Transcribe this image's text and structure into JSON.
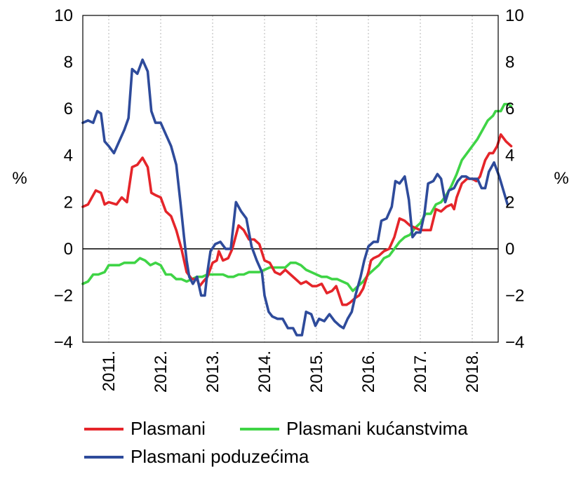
{
  "chart_data": {
    "type": "line",
    "ylabel_left": "%",
    "ylabel_right": "%",
    "ylim": [
      -4,
      10
    ],
    "yticks": [
      -4,
      -2,
      0,
      2,
      4,
      6,
      8,
      10
    ],
    "ytick_labels": [
      "−4",
      "−2",
      "0",
      "2",
      "4",
      "6",
      "8",
      "10"
    ],
    "x_range": [
      2010.5,
      2018.5
    ],
    "x_grid": [
      2011,
      2012,
      2013,
      2014,
      2015,
      2016,
      2017,
      2018
    ],
    "x_labels": [
      {
        "label": "2011.",
        "x": 2011.0
      },
      {
        "label": "2012.",
        "x": 2012.0
      },
      {
        "label": "2013.",
        "x": 2013.0
      },
      {
        "label": "2014.",
        "x": 2014.0
      },
      {
        "label": "2015.",
        "x": 2015.0
      },
      {
        "label": "2016.",
        "x": 2016.0
      },
      {
        "label": "2017.",
        "x": 2017.0
      },
      {
        "label": "2018.",
        "x": 2018.0
      }
    ],
    "grid": true,
    "zero_line": true,
    "series": [
      {
        "name": "Plasmani",
        "color": "#e5252a",
        "points": [
          [
            2010.5,
            1.8
          ],
          [
            2010.6,
            1.9
          ],
          [
            2010.75,
            2.5
          ],
          [
            2010.85,
            2.4
          ],
          [
            2010.92,
            1.9
          ],
          [
            2011.0,
            2.0
          ],
          [
            2011.15,
            1.9
          ],
          [
            2011.25,
            2.2
          ],
          [
            2011.35,
            2.0
          ],
          [
            2011.45,
            3.5
          ],
          [
            2011.55,
            3.6
          ],
          [
            2011.65,
            3.9
          ],
          [
            2011.75,
            3.5
          ],
          [
            2011.82,
            2.4
          ],
          [
            2011.9,
            2.3
          ],
          [
            2012.0,
            2.2
          ],
          [
            2012.1,
            1.6
          ],
          [
            2012.2,
            1.4
          ],
          [
            2012.3,
            0.8
          ],
          [
            2012.4,
            0.0
          ],
          [
            2012.5,
            -1.0
          ],
          [
            2012.6,
            -1.3
          ],
          [
            2012.7,
            -1.3
          ],
          [
            2012.75,
            -1.6
          ],
          [
            2012.82,
            -1.4
          ],
          [
            2012.9,
            -1.2
          ],
          [
            2013.0,
            -0.6
          ],
          [
            2013.08,
            -0.5
          ],
          [
            2013.12,
            -0.1
          ],
          [
            2013.2,
            -0.5
          ],
          [
            2013.3,
            -0.4
          ],
          [
            2013.38,
            0.0
          ],
          [
            2013.5,
            1.0
          ],
          [
            2013.6,
            0.8
          ],
          [
            2013.7,
            0.4
          ],
          [
            2013.8,
            0.4
          ],
          [
            2013.9,
            0.2
          ],
          [
            2014.0,
            -0.5
          ],
          [
            2014.1,
            -0.6
          ],
          [
            2014.2,
            -1.0
          ],
          [
            2014.3,
            -1.1
          ],
          [
            2014.4,
            -0.9
          ],
          [
            2014.5,
            -1.1
          ],
          [
            2014.6,
            -1.3
          ],
          [
            2014.7,
            -1.5
          ],
          [
            2014.8,
            -1.4
          ],
          [
            2014.92,
            -1.6
          ],
          [
            2015.0,
            -1.6
          ],
          [
            2015.1,
            -1.5
          ],
          [
            2015.2,
            -1.9
          ],
          [
            2015.3,
            -1.8
          ],
          [
            2015.38,
            -1.6
          ],
          [
            2015.5,
            -2.4
          ],
          [
            2015.58,
            -2.4
          ],
          [
            2015.65,
            -2.3
          ],
          [
            2015.75,
            -2.1
          ],
          [
            2015.82,
            -2.0
          ],
          [
            2015.9,
            -1.7
          ],
          [
            2016.0,
            -1.0
          ],
          [
            2016.05,
            -0.5
          ],
          [
            2016.1,
            -0.4
          ],
          [
            2016.2,
            -0.3
          ],
          [
            2016.3,
            -0.1
          ],
          [
            2016.4,
            0.0
          ],
          [
            2016.5,
            0.5
          ],
          [
            2016.6,
            1.3
          ],
          [
            2016.7,
            1.2
          ],
          [
            2016.8,
            1.0
          ],
          [
            2016.9,
            0.9
          ],
          [
            2017.0,
            0.8
          ],
          [
            2017.1,
            0.8
          ],
          [
            2017.2,
            0.8
          ],
          [
            2017.3,
            1.7
          ],
          [
            2017.4,
            1.6
          ],
          [
            2017.5,
            1.8
          ],
          [
            2017.6,
            1.9
          ],
          [
            2017.65,
            1.7
          ],
          [
            2017.7,
            2.2
          ],
          [
            2017.8,
            2.8
          ],
          [
            2017.9,
            3.0
          ],
          [
            2018.0,
            3.0
          ],
          [
            2018.08,
            2.9
          ],
          [
            2018.15,
            3.1
          ],
          [
            2018.25,
            3.8
          ],
          [
            2018.33,
            4.1
          ],
          [
            2018.4,
            4.1
          ],
          [
            2018.48,
            4.4
          ],
          [
            2018.55,
            4.9
          ],
          [
            2018.65,
            4.6
          ],
          [
            2018.75,
            4.4
          ]
        ]
      },
      {
        "name": "Plasmani kućanstvima",
        "color": "#3fd446",
        "points": [
          [
            2010.5,
            -1.5
          ],
          [
            2010.6,
            -1.4
          ],
          [
            2010.7,
            -1.1
          ],
          [
            2010.8,
            -1.1
          ],
          [
            2010.92,
            -1.0
          ],
          [
            2011.0,
            -0.7
          ],
          [
            2011.1,
            -0.7
          ],
          [
            2011.2,
            -0.7
          ],
          [
            2011.3,
            -0.6
          ],
          [
            2011.4,
            -0.6
          ],
          [
            2011.5,
            -0.6
          ],
          [
            2011.6,
            -0.4
          ],
          [
            2011.7,
            -0.5
          ],
          [
            2011.8,
            -0.7
          ],
          [
            2011.9,
            -0.6
          ],
          [
            2012.0,
            -0.7
          ],
          [
            2012.1,
            -1.1
          ],
          [
            2012.2,
            -1.1
          ],
          [
            2012.3,
            -1.3
          ],
          [
            2012.4,
            -1.3
          ],
          [
            2012.5,
            -1.4
          ],
          [
            2012.6,
            -1.3
          ],
          [
            2012.7,
            -1.2
          ],
          [
            2012.8,
            -1.2
          ],
          [
            2012.9,
            -1.1
          ],
          [
            2013.0,
            -1.1
          ],
          [
            2013.1,
            -1.1
          ],
          [
            2013.2,
            -1.1
          ],
          [
            2013.3,
            -1.2
          ],
          [
            2013.4,
            -1.2
          ],
          [
            2013.5,
            -1.1
          ],
          [
            2013.6,
            -1.1
          ],
          [
            2013.7,
            -1.0
          ],
          [
            2013.8,
            -1.0
          ],
          [
            2013.9,
            -1.0
          ],
          [
            2014.0,
            -0.9
          ],
          [
            2014.1,
            -0.8
          ],
          [
            2014.2,
            -0.8
          ],
          [
            2014.3,
            -0.8
          ],
          [
            2014.4,
            -0.8
          ],
          [
            2014.5,
            -0.6
          ],
          [
            2014.6,
            -0.6
          ],
          [
            2014.7,
            -0.7
          ],
          [
            2014.8,
            -0.9
          ],
          [
            2014.9,
            -1.0
          ],
          [
            2015.0,
            -1.1
          ],
          [
            2015.1,
            -1.2
          ],
          [
            2015.2,
            -1.2
          ],
          [
            2015.3,
            -1.3
          ],
          [
            2015.4,
            -1.3
          ],
          [
            2015.5,
            -1.4
          ],
          [
            2015.6,
            -1.5
          ],
          [
            2015.7,
            -1.8
          ],
          [
            2015.8,
            -1.6
          ],
          [
            2015.9,
            -1.4
          ],
          [
            2016.0,
            -1.1
          ],
          [
            2016.1,
            -0.9
          ],
          [
            2016.2,
            -0.7
          ],
          [
            2016.3,
            -0.4
          ],
          [
            2016.4,
            -0.3
          ],
          [
            2016.5,
            0.0
          ],
          [
            2016.6,
            0.3
          ],
          [
            2016.7,
            0.5
          ],
          [
            2016.8,
            0.6
          ],
          [
            2016.9,
            0.9
          ],
          [
            2017.0,
            1.1
          ],
          [
            2017.1,
            1.5
          ],
          [
            2017.2,
            1.5
          ],
          [
            2017.3,
            1.9
          ],
          [
            2017.4,
            2.0
          ],
          [
            2017.5,
            2.3
          ],
          [
            2017.6,
            2.7
          ],
          [
            2017.7,
            3.2
          ],
          [
            2017.8,
            3.8
          ],
          [
            2017.9,
            4.1
          ],
          [
            2018.0,
            4.4
          ],
          [
            2018.1,
            4.7
          ],
          [
            2018.2,
            5.1
          ],
          [
            2018.3,
            5.5
          ],
          [
            2018.4,
            5.7
          ],
          [
            2018.45,
            5.9
          ],
          [
            2018.55,
            5.9
          ],
          [
            2018.62,
            6.2
          ],
          [
            2018.7,
            6.2
          ],
          [
            2018.75,
            6.1
          ]
        ]
      },
      {
        "name": "Plasmani poduzećima",
        "color": "#2e4b9b",
        "points": [
          [
            2010.5,
            5.4
          ],
          [
            2010.6,
            5.5
          ],
          [
            2010.7,
            5.4
          ],
          [
            2010.78,
            5.9
          ],
          [
            2010.85,
            5.8
          ],
          [
            2010.92,
            4.6
          ],
          [
            2011.0,
            4.4
          ],
          [
            2011.1,
            4.1
          ],
          [
            2011.2,
            4.6
          ],
          [
            2011.3,
            5.1
          ],
          [
            2011.38,
            5.6
          ],
          [
            2011.45,
            7.7
          ],
          [
            2011.55,
            7.5
          ],
          [
            2011.65,
            8.1
          ],
          [
            2011.75,
            7.6
          ],
          [
            2011.82,
            5.9
          ],
          [
            2011.9,
            5.4
          ],
          [
            2012.0,
            5.4
          ],
          [
            2012.1,
            4.9
          ],
          [
            2012.2,
            4.4
          ],
          [
            2012.3,
            3.6
          ],
          [
            2012.38,
            2.0
          ],
          [
            2012.45,
            0.5
          ],
          [
            2012.5,
            -0.5
          ],
          [
            2012.55,
            -1.2
          ],
          [
            2012.62,
            -1.5
          ],
          [
            2012.7,
            -1.2
          ],
          [
            2012.78,
            -2.0
          ],
          [
            2012.85,
            -2.0
          ],
          [
            2012.9,
            -1.0
          ],
          [
            2012.96,
            -0.1
          ],
          [
            2013.05,
            0.2
          ],
          [
            2013.15,
            0.3
          ],
          [
            2013.25,
            0.0
          ],
          [
            2013.35,
            0.0
          ],
          [
            2013.45,
            2.0
          ],
          [
            2013.55,
            1.6
          ],
          [
            2013.65,
            1.3
          ],
          [
            2013.75,
            0.1
          ],
          [
            2013.85,
            -0.5
          ],
          [
            2013.95,
            -1.0
          ],
          [
            2014.0,
            -2.0
          ],
          [
            2014.08,
            -2.7
          ],
          [
            2014.15,
            -2.9
          ],
          [
            2014.25,
            -3.0
          ],
          [
            2014.35,
            -3.0
          ],
          [
            2014.45,
            -3.4
          ],
          [
            2014.55,
            -3.4
          ],
          [
            2014.62,
            -3.7
          ],
          [
            2014.72,
            -3.7
          ],
          [
            2014.8,
            -2.7
          ],
          [
            2014.9,
            -2.8
          ],
          [
            2014.98,
            -3.3
          ],
          [
            2015.05,
            -3.0
          ],
          [
            2015.15,
            -3.1
          ],
          [
            2015.25,
            -2.8
          ],
          [
            2015.35,
            -3.1
          ],
          [
            2015.45,
            -3.3
          ],
          [
            2015.52,
            -3.4
          ],
          [
            2015.6,
            -3.0
          ],
          [
            2015.68,
            -2.7
          ],
          [
            2015.75,
            -2.0
          ],
          [
            2015.85,
            -1.2
          ],
          [
            2015.92,
            -0.5
          ],
          [
            2016.0,
            0.1
          ],
          [
            2016.1,
            0.3
          ],
          [
            2016.18,
            0.3
          ],
          [
            2016.25,
            1.2
          ],
          [
            2016.35,
            1.3
          ],
          [
            2016.45,
            1.8
          ],
          [
            2016.52,
            2.9
          ],
          [
            2016.6,
            2.8
          ],
          [
            2016.7,
            3.1
          ],
          [
            2016.78,
            2.1
          ],
          [
            2016.85,
            0.5
          ],
          [
            2016.92,
            0.7
          ],
          [
            2017.0,
            0.7
          ],
          [
            2017.08,
            1.5
          ],
          [
            2017.15,
            2.8
          ],
          [
            2017.25,
            2.9
          ],
          [
            2017.33,
            3.2
          ],
          [
            2017.4,
            3.0
          ],
          [
            2017.48,
            2.0
          ],
          [
            2017.55,
            2.5
          ],
          [
            2017.65,
            2.6
          ],
          [
            2017.72,
            2.9
          ],
          [
            2017.8,
            3.1
          ],
          [
            2017.88,
            3.1
          ],
          [
            2017.95,
            3.0
          ],
          [
            2018.02,
            3.0
          ],
          [
            2018.1,
            3.0
          ],
          [
            2018.18,
            2.6
          ],
          [
            2018.25,
            2.6
          ],
          [
            2018.32,
            3.3
          ],
          [
            2018.42,
            3.7
          ],
          [
            2018.52,
            3.1
          ],
          [
            2018.6,
            2.5
          ],
          [
            2018.68,
            1.9
          ]
        ]
      }
    ]
  }
}
